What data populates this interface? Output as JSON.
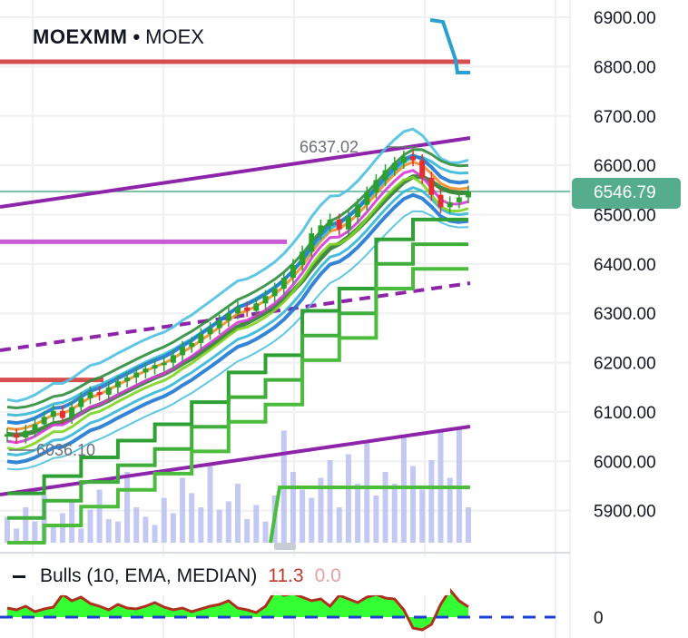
{
  "header": {
    "symbol": "MOEXMM",
    "exchange": "MOEX"
  },
  "price_axis": [
    "6900.00",
    "6800.00",
    "6700.00",
    "6600.00",
    "6500.00",
    "6400.00",
    "6300.00",
    "6200.00",
    "6100.00",
    "6000.00",
    "5900.00"
  ],
  "current_price": "6546.79",
  "annotations": {
    "high": "6637.02",
    "low": "6036.10"
  },
  "indicator": {
    "name": "Bulls",
    "params": "(10, EMA, MEDIAN)",
    "value1": "11.3",
    "value2": "0.0",
    "zero_label": "0"
  },
  "colors": {
    "up_candle": "#2ca02c",
    "down_candle": "#e03030",
    "purple": "#8e24aa",
    "last_price_line": "#56ad8e",
    "volume": "#b8bff0",
    "bulls_fill": "#33ff33",
    "bulls_line": "#b03020",
    "zero_line": "#1f3fd0"
  },
  "chart_data": [
    {
      "type": "candlestick",
      "title": "MOEXMM • MOEX",
      "ylim": [
        5835,
        6935
      ],
      "y_ticks": [
        6900,
        6800,
        6700,
        6600,
        6500,
        6400,
        6300,
        6200,
        6100,
        6000,
        5900
      ],
      "last_price": 6546.79,
      "high_label": 6637.02,
      "low_label": 6036.1,
      "close": [
        6055,
        6048,
        6062,
        6075,
        6090,
        6102,
        6088,
        6110,
        6128,
        6140,
        6135,
        6150,
        6162,
        6170,
        6180,
        6188,
        6195,
        6200,
        6215,
        6232,
        6240,
        6258,
        6270,
        6285,
        6300,
        6312,
        6305,
        6320,
        6335,
        6350,
        6372,
        6398,
        6425,
        6462,
        6478,
        6490,
        6470,
        6495,
        6520,
        6545,
        6570,
        6590,
        6605,
        6618,
        6610,
        6575,
        6540,
        6515,
        6525,
        6535,
        6546.79
      ],
      "horizontal_levels": [
        {
          "value": 6810,
          "color": "#d03030"
        },
        {
          "value": 6445,
          "color": "#c040d0"
        },
        {
          "value": 6165,
          "color": "#d03030"
        }
      ],
      "volume": [
        0.22,
        0.12,
        0.3,
        0.18,
        0.4,
        0.15,
        0.25,
        0.35,
        0.12,
        0.28,
        0.45,
        0.2,
        0.18,
        0.6,
        0.3,
        0.22,
        0.15,
        0.38,
        0.25,
        0.55,
        0.42,
        0.3,
        0.65,
        0.28,
        0.35,
        0.5,
        0.2,
        0.32,
        0.18,
        0.4,
        0.95,
        0.6,
        0.45,
        0.38,
        0.55,
        0.7,
        0.3,
        0.75,
        0.5,
        0.85,
        0.4,
        0.6,
        0.5,
        0.9,
        0.65,
        0.45,
        0.7,
        0.95,
        0.55,
        0.98,
        0.3
      ]
    },
    {
      "type": "area",
      "title": "Bulls (10, EMA, MEDIAN)",
      "ylim": [
        -20,
        40
      ],
      "zero": 0,
      "values": [
        10,
        8,
        12,
        6,
        9,
        11,
        25,
        18,
        22,
        15,
        12,
        8,
        14,
        10,
        9,
        12,
        16,
        11,
        8,
        10,
        6,
        9,
        12,
        14,
        18,
        10,
        8,
        5,
        12,
        28,
        24,
        26,
        22,
        18,
        20,
        12,
        24,
        20,
        16,
        22,
        25,
        21,
        20,
        8,
        -12,
        -14,
        -8,
        14,
        30,
        18,
        11.3
      ]
    }
  ]
}
